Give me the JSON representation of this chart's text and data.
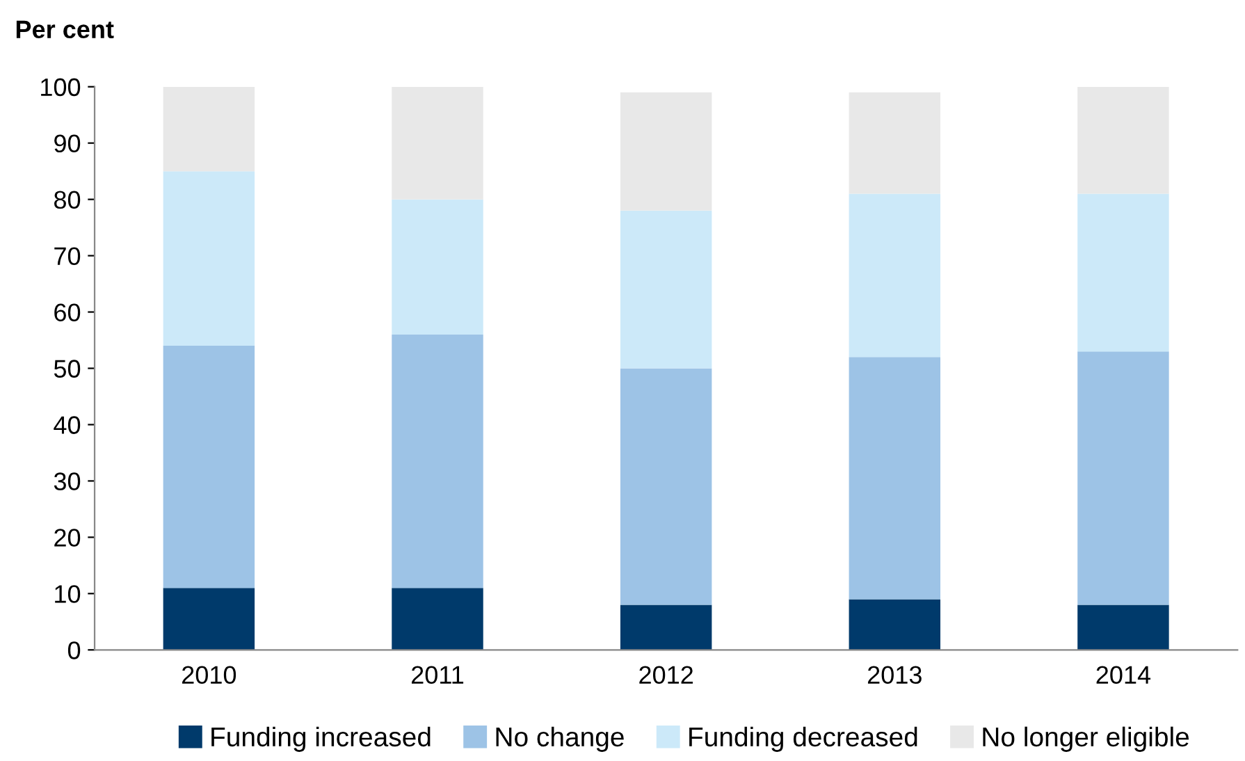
{
  "chart_data": {
    "type": "bar",
    "stacked": true,
    "ylabel": "Per cent",
    "categories": [
      "2010",
      "2011",
      "2012",
      "2013",
      "2014"
    ],
    "series": [
      {
        "name": "Funding increased",
        "color": "#003a6b",
        "values": [
          11,
          11,
          8,
          9,
          8
        ]
      },
      {
        "name": "No change",
        "color": "#9dc3e6",
        "values": [
          43,
          45,
          42,
          43,
          45
        ]
      },
      {
        "name": "Funding decreased",
        "color": "#cce9f9",
        "values": [
          31,
          24,
          28,
          29,
          28
        ]
      },
      {
        "name": "No longer eligible",
        "color": "#e8e8e8",
        "values": [
          15,
          20,
          21,
          18,
          19
        ]
      }
    ],
    "ylim": [
      0,
      100
    ],
    "yticks": [
      0,
      10,
      20,
      30,
      40,
      50,
      60,
      70,
      80,
      90,
      100
    ],
    "grid": false,
    "legend": "bottom"
  }
}
